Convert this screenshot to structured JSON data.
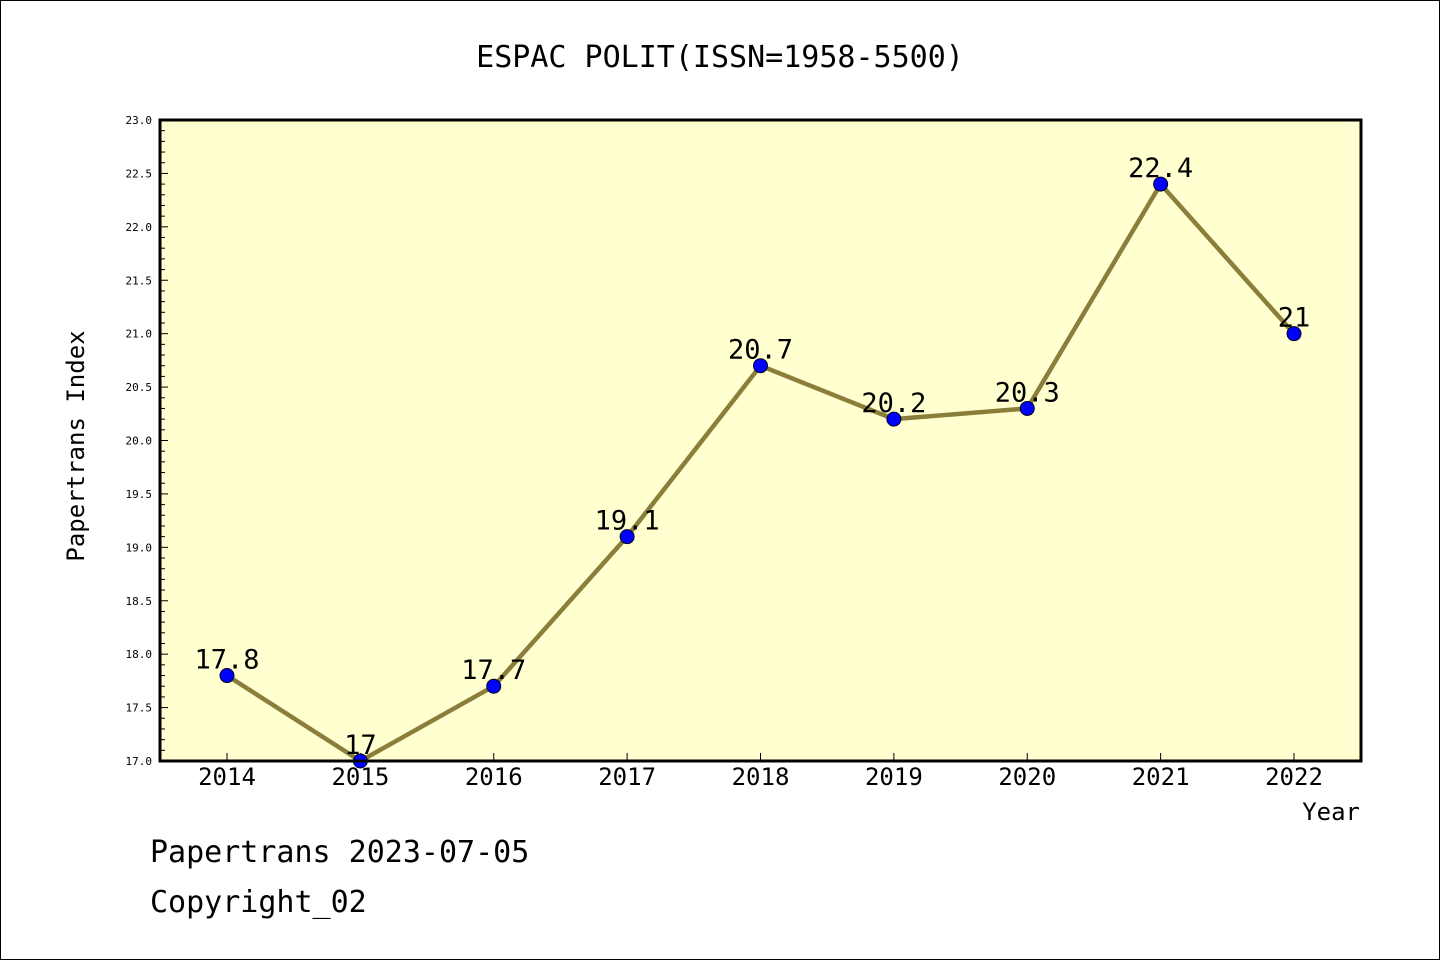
{
  "chart_data": {
    "type": "line",
    "title": "ESPAC POLIT(ISSN=1958-5500)",
    "xlabel": "Year",
    "ylabel": "Papertrans Index",
    "ylim": [
      17.0,
      23.0
    ],
    "yticks": [
      "17.0",
      "17.5",
      "18.0",
      "18.5",
      "19.0",
      "19.5",
      "20.0",
      "20.5",
      "21.0",
      "21.5",
      "22.0",
      "22.5",
      "23.0"
    ],
    "categories": [
      "2014",
      "2015",
      "2016",
      "2017",
      "2018",
      "2019",
      "2020",
      "2021",
      "2022"
    ],
    "values": [
      17.8,
      17.0,
      17.7,
      19.1,
      20.7,
      20.2,
      20.3,
      22.4,
      21.0
    ],
    "data_labels": [
      "17.8",
      "17",
      "17.7",
      "19.1",
      "20.7",
      "20.2",
      "20.3",
      "22.4",
      "21"
    ],
    "colors": {
      "plot_background": "#ffffd0",
      "line": "#8b7d3a",
      "marker": "#0000ff"
    },
    "grid": false
  },
  "footer": {
    "line1": "Papertrans 2023-07-05",
    "line2": "Copyright_02"
  }
}
